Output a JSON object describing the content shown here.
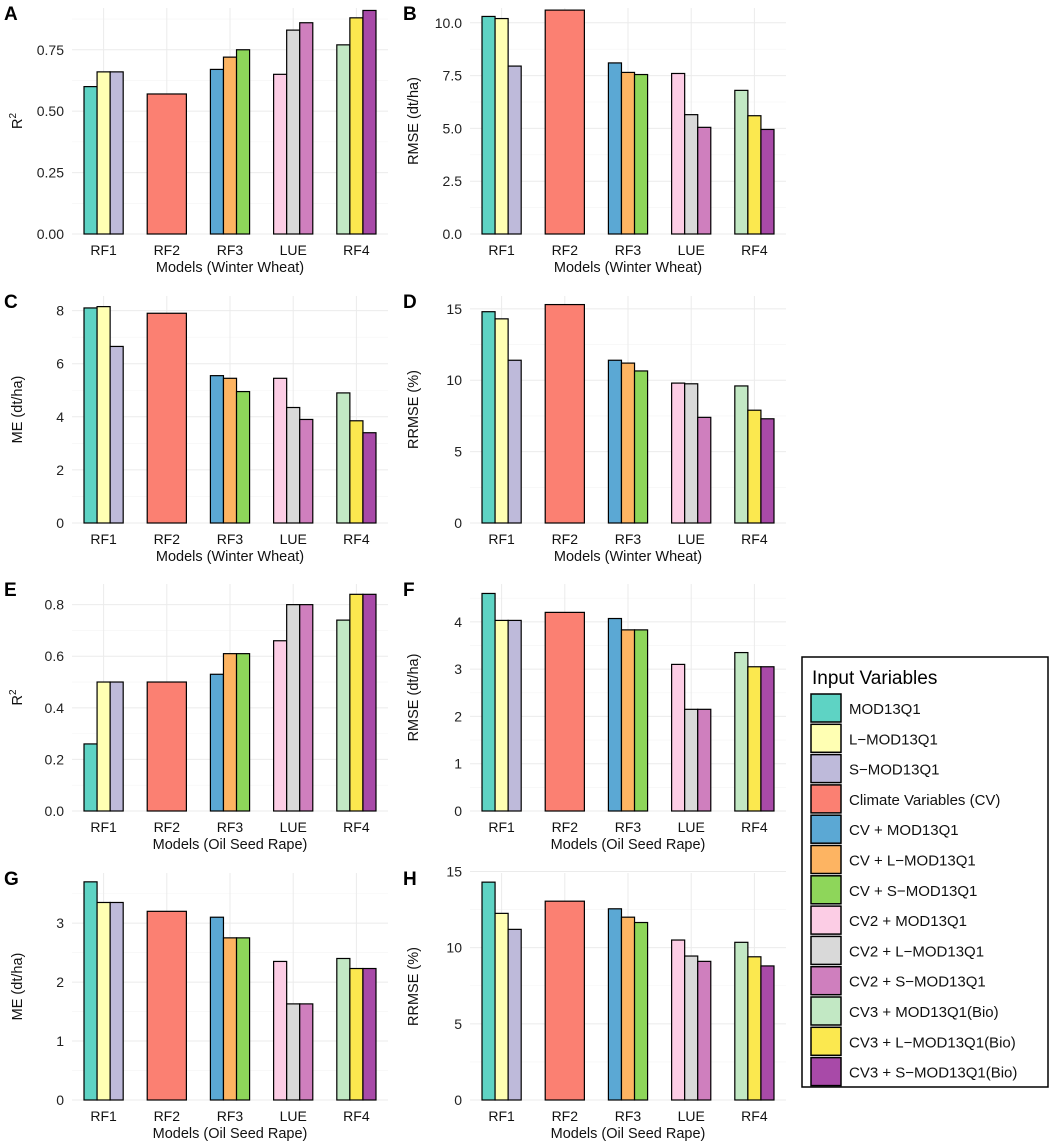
{
  "colors": {
    "MOD13Q1": "#5ED3C4",
    "L-MOD13Q1": "#FFFFB3",
    "S-MOD13Q1": "#BEBADA",
    "Climate Variables (CV)": "#FB8072",
    "CV + MOD13Q1": "#5BA8D4",
    "CV + L-MOD13Q1": "#FDB462",
    "CV + S-MOD13Q1": "#8ED65A",
    "CV2 + MOD13Q1": "#FCCDE5",
    "CV2 + L-MOD13Q1": "#D9D9D9",
    "CV2 + S-MOD13Q1": "#CF7FBE",
    "CV3 + MOD13Q1(Bio)": "#C2E8C4",
    "CV3 + L-MOD13Q1(Bio)": "#FBE84F",
    "CV3 + S-MOD13Q1(Bio)": "#A84AA8"
  },
  "legend": {
    "title": "Input Variables",
    "items": [
      {
        "key": "MOD13Q1",
        "label": "MOD13Q1"
      },
      {
        "key": "L-MOD13Q1",
        "label": "L−MOD13Q1"
      },
      {
        "key": "S-MOD13Q1",
        "label": "S−MOD13Q1"
      },
      {
        "key": "Climate Variables (CV)",
        "label": "Climate Variables (CV)"
      },
      {
        "key": "CV + MOD13Q1",
        "label": "CV +  MOD13Q1"
      },
      {
        "key": "CV + L-MOD13Q1",
        "label": "CV + L−MOD13Q1"
      },
      {
        "key": "CV + S-MOD13Q1",
        "label": "CV + S−MOD13Q1"
      },
      {
        "key": "CV2 + MOD13Q1",
        "label": "CV2 +  MOD13Q1"
      },
      {
        "key": "CV2 + L-MOD13Q1",
        "label": "CV2 + L−MOD13Q1"
      },
      {
        "key": "CV2 + S-MOD13Q1",
        "label": "CV2 + S−MOD13Q1"
      },
      {
        "key": "CV3 + MOD13Q1(Bio)",
        "label": "CV3 +  MOD13Q1(Bio)"
      },
      {
        "key": "CV3 + L-MOD13Q1(Bio)",
        "label": "CV3 + L−MOD13Q1(Bio)"
      },
      {
        "key": "CV3 + S-MOD13Q1(Bio)",
        "label": "CV3 +  S−MOD13Q1(Bio)"
      }
    ]
  },
  "chart_data": [
    {
      "panel": "A",
      "type": "bar",
      "xlabel": "Models (Winter Wheat)",
      "ylabel": "R2",
      "ylabel_superscript": "2",
      "ylim": [
        0,
        0.92
      ],
      "ticks": [
        "0.00",
        "0.25",
        "0.50",
        "0.75"
      ],
      "categories": [
        "RF1",
        "RF2",
        "RF3",
        "LUE",
        "RF4"
      ],
      "groups": [
        [
          {
            "series": "MOD13Q1",
            "value": 0.6
          },
          {
            "series": "L-MOD13Q1",
            "value": 0.66
          },
          {
            "series": "S-MOD13Q1",
            "value": 0.66
          }
        ],
        [
          {
            "series": "Climate Variables (CV)",
            "value": 0.57
          }
        ],
        [
          {
            "series": "CV + MOD13Q1",
            "value": 0.67
          },
          {
            "series": "CV + L-MOD13Q1",
            "value": 0.72
          },
          {
            "series": "CV + S-MOD13Q1",
            "value": 0.75
          }
        ],
        [
          {
            "series": "CV2 + MOD13Q1",
            "value": 0.65
          },
          {
            "series": "CV2 + L-MOD13Q1",
            "value": 0.83
          },
          {
            "series": "CV2 + S-MOD13Q1",
            "value": 0.86
          }
        ],
        [
          {
            "series": "CV3 + MOD13Q1(Bio)",
            "value": 0.77
          },
          {
            "series": "CV3 + L-MOD13Q1(Bio)",
            "value": 0.88
          },
          {
            "series": "CV3 + S-MOD13Q1(Bio)",
            "value": 0.91
          }
        ]
      ]
    },
    {
      "panel": "B",
      "type": "bar",
      "xlabel": "Models (Winter Wheat)",
      "ylabel": "RMSE (dt/ha)",
      "ylim": [
        0,
        10.7
      ],
      "ticks": [
        "0.0",
        "2.5",
        "5.0",
        "7.5",
        "10.0"
      ],
      "categories": [
        "RF1",
        "RF2",
        "RF3",
        "LUE",
        "RF4"
      ],
      "groups": [
        [
          {
            "series": "MOD13Q1",
            "value": 10.3
          },
          {
            "series": "L-MOD13Q1",
            "value": 10.2
          },
          {
            "series": "S-MOD13Q1",
            "value": 7.95
          }
        ],
        [
          {
            "series": "Climate Variables (CV)",
            "value": 10.6
          }
        ],
        [
          {
            "series": "CV + MOD13Q1",
            "value": 8.1
          },
          {
            "series": "CV + L-MOD13Q1",
            "value": 7.65
          },
          {
            "series": "CV + S-MOD13Q1",
            "value": 7.55
          }
        ],
        [
          {
            "series": "CV2 + MOD13Q1",
            "value": 7.6
          },
          {
            "series": "CV2 + L-MOD13Q1",
            "value": 5.65
          },
          {
            "series": "CV2 + S-MOD13Q1",
            "value": 5.05
          }
        ],
        [
          {
            "series": "CV3 + MOD13Q1(Bio)",
            "value": 6.8
          },
          {
            "series": "CV3 + L-MOD13Q1(Bio)",
            "value": 5.6
          },
          {
            "series": "CV3 + S-MOD13Q1(Bio)",
            "value": 4.95
          }
        ]
      ]
    },
    {
      "panel": "C",
      "type": "bar",
      "xlabel": "Models (Winter Wheat)",
      "ylabel": "ME (dt/ha)",
      "ylim": [
        0,
        8.55
      ],
      "ticks": [
        "0",
        "2",
        "4",
        "6",
        "8"
      ],
      "categories": [
        "RF1",
        "RF2",
        "RF3",
        "LUE",
        "RF4"
      ],
      "groups": [
        [
          {
            "series": "MOD13Q1",
            "value": 8.1
          },
          {
            "series": "L-MOD13Q1",
            "value": 8.15
          },
          {
            "series": "S-MOD13Q1",
            "value": 6.65
          }
        ],
        [
          {
            "series": "Climate Variables (CV)",
            "value": 7.9
          }
        ],
        [
          {
            "series": "CV + MOD13Q1",
            "value": 5.55
          },
          {
            "series": "CV + L-MOD13Q1",
            "value": 5.45
          },
          {
            "series": "CV + S-MOD13Q1",
            "value": 4.95
          }
        ],
        [
          {
            "series": "CV2 + MOD13Q1",
            "value": 5.45
          },
          {
            "series": "CV2 + L-MOD13Q1",
            "value": 4.35
          },
          {
            "series": "CV2 + S-MOD13Q1",
            "value": 3.9
          }
        ],
        [
          {
            "series": "CV3 + MOD13Q1(Bio)",
            "value": 4.9
          },
          {
            "series": "CV3 + L-MOD13Q1(Bio)",
            "value": 3.85
          },
          {
            "series": "CV3 + S-MOD13Q1(Bio)",
            "value": 3.4
          }
        ]
      ]
    },
    {
      "panel": "D",
      "type": "bar",
      "xlabel": "Models (Winter Wheat)",
      "ylabel": "RRMSE (%)",
      "ylim": [
        0,
        15.9
      ],
      "ticks": [
        "0",
        "5",
        "10",
        "15"
      ],
      "categories": [
        "RF1",
        "RF2",
        "RF3",
        "LUE",
        "RF4"
      ],
      "groups": [
        [
          {
            "series": "MOD13Q1",
            "value": 14.8
          },
          {
            "series": "L-MOD13Q1",
            "value": 14.3
          },
          {
            "series": "S-MOD13Q1",
            "value": 11.4
          }
        ],
        [
          {
            "series": "Climate Variables (CV)",
            "value": 15.3
          }
        ],
        [
          {
            "series": "CV + MOD13Q1",
            "value": 11.4
          },
          {
            "series": "CV + L-MOD13Q1",
            "value": 11.2
          },
          {
            "series": "CV + S-MOD13Q1",
            "value": 10.65
          }
        ],
        [
          {
            "series": "CV2 + MOD13Q1",
            "value": 9.8
          },
          {
            "series": "CV2 + L-MOD13Q1",
            "value": 9.75
          },
          {
            "series": "CV2 + S-MOD13Q1",
            "value": 7.4
          }
        ],
        [
          {
            "series": "CV3 + MOD13Q1(Bio)",
            "value": 9.6
          },
          {
            "series": "CV3 + L-MOD13Q1(Bio)",
            "value": 7.9
          },
          {
            "series": "CV3 + S-MOD13Q1(Bio)",
            "value": 7.3
          }
        ]
      ]
    },
    {
      "panel": "E",
      "type": "bar",
      "xlabel": "Models (Oil Seed Rape)",
      "ylabel": "R2",
      "ylabel_superscript": "2",
      "ylim": [
        0,
        0.88
      ],
      "ticks": [
        "0.0",
        "0.2",
        "0.4",
        "0.6",
        "0.8"
      ],
      "categories": [
        "RF1",
        "RF2",
        "RF3",
        "LUE",
        "RF4"
      ],
      "groups": [
        [
          {
            "series": "MOD13Q1",
            "value": 0.26
          },
          {
            "series": "L-MOD13Q1",
            "value": 0.5
          },
          {
            "series": "S-MOD13Q1",
            "value": 0.5
          }
        ],
        [
          {
            "series": "Climate Variables (CV)",
            "value": 0.5
          }
        ],
        [
          {
            "series": "CV + MOD13Q1",
            "value": 0.53
          },
          {
            "series": "CV + L-MOD13Q1",
            "value": 0.61
          },
          {
            "series": "CV + S-MOD13Q1",
            "value": 0.61
          }
        ],
        [
          {
            "series": "CV2 + MOD13Q1",
            "value": 0.66
          },
          {
            "series": "CV2 + L-MOD13Q1",
            "value": 0.8
          },
          {
            "series": "CV2 + S-MOD13Q1",
            "value": 0.8
          }
        ],
        [
          {
            "series": "CV3 + MOD13Q1(Bio)",
            "value": 0.74
          },
          {
            "series": "CV3 + L-MOD13Q1(Bio)",
            "value": 0.84
          },
          {
            "series": "CV3 + S-MOD13Q1(Bio)",
            "value": 0.84
          }
        ]
      ]
    },
    {
      "panel": "F",
      "type": "bar",
      "xlabel": "Models (Oil Seed Rape)",
      "ylabel": "RMSE (dt/ha)",
      "ylim": [
        0,
        4.8
      ],
      "ticks": [
        "0",
        "1",
        "2",
        "3",
        "4"
      ],
      "categories": [
        "RF1",
        "RF2",
        "RF3",
        "LUE",
        "RF4"
      ],
      "groups": [
        [
          {
            "series": "MOD13Q1",
            "value": 4.6
          },
          {
            "series": "L-MOD13Q1",
            "value": 4.03
          },
          {
            "series": "S-MOD13Q1",
            "value": 4.03
          }
        ],
        [
          {
            "series": "Climate Variables (CV)",
            "value": 4.2
          }
        ],
        [
          {
            "series": "CV + MOD13Q1",
            "value": 4.07
          },
          {
            "series": "CV + L-MOD13Q1",
            "value": 3.83
          },
          {
            "series": "CV + S-MOD13Q1",
            "value": 3.83
          }
        ],
        [
          {
            "series": "CV2 + MOD13Q1",
            "value": 3.1
          },
          {
            "series": "CV2 + L-MOD13Q1",
            "value": 2.15
          },
          {
            "series": "CV2 + S-MOD13Q1",
            "value": 2.15
          }
        ],
        [
          {
            "series": "CV3 + MOD13Q1(Bio)",
            "value": 3.35
          },
          {
            "series": "CV3 + L-MOD13Q1(Bio)",
            "value": 3.05
          },
          {
            "series": "CV3 + S-MOD13Q1(Bio)",
            "value": 3.05
          }
        ]
      ]
    },
    {
      "panel": "G",
      "type": "bar",
      "xlabel": "Models (Oil Seed Rape)",
      "ylabel": "ME (dt/ha)",
      "ylim": [
        0,
        3.85
      ],
      "ticks": [
        "0",
        "1",
        "2",
        "3"
      ],
      "categories": [
        "RF1",
        "RF2",
        "RF3",
        "LUE",
        "RF4"
      ],
      "groups": [
        [
          {
            "series": "MOD13Q1",
            "value": 3.7
          },
          {
            "series": "L-MOD13Q1",
            "value": 3.35
          },
          {
            "series": "S-MOD13Q1",
            "value": 3.35
          }
        ],
        [
          {
            "series": "Climate Variables (CV)",
            "value": 3.2
          }
        ],
        [
          {
            "series": "CV + MOD13Q1",
            "value": 3.1
          },
          {
            "series": "CV + L-MOD13Q1",
            "value": 2.75
          },
          {
            "series": "CV + S-MOD13Q1",
            "value": 2.75
          }
        ],
        [
          {
            "series": "CV2 + MOD13Q1",
            "value": 2.35
          },
          {
            "series": "CV2 + L-MOD13Q1",
            "value": 1.63
          },
          {
            "series": "CV2 + S-MOD13Q1",
            "value": 1.63
          }
        ],
        [
          {
            "series": "CV3 + MOD13Q1(Bio)",
            "value": 2.4
          },
          {
            "series": "CV3 + L-MOD13Q1(Bio)",
            "value": 2.23
          },
          {
            "series": "CV3 + S-MOD13Q1(Bio)",
            "value": 2.23
          }
        ]
      ]
    },
    {
      "panel": "H",
      "type": "bar",
      "xlabel": "Models (Oil Seed Rape)",
      "ylabel": "RRMSE (%)",
      "ylim": [
        0,
        14.9
      ],
      "ticks": [
        "0",
        "5",
        "10",
        "15"
      ],
      "categories": [
        "RF1",
        "RF2",
        "RF3",
        "LUE",
        "RF4"
      ],
      "groups": [
        [
          {
            "series": "MOD13Q1",
            "value": 14.3
          },
          {
            "series": "L-MOD13Q1",
            "value": 12.25
          },
          {
            "series": "S-MOD13Q1",
            "value": 11.2
          }
        ],
        [
          {
            "series": "Climate Variables (CV)",
            "value": 13.05
          }
        ],
        [
          {
            "series": "CV + MOD13Q1",
            "value": 12.55
          },
          {
            "series": "CV + L-MOD13Q1",
            "value": 12.0
          },
          {
            "series": "CV + S-MOD13Q1",
            "value": 11.65
          }
        ],
        [
          {
            "series": "CV2 + MOD13Q1",
            "value": 10.5
          },
          {
            "series": "CV2 + L-MOD13Q1",
            "value": 9.45
          },
          {
            "series": "CV2 + S-MOD13Q1",
            "value": 9.1
          }
        ],
        [
          {
            "series": "CV3 + MOD13Q1(Bio)",
            "value": 10.35
          },
          {
            "series": "CV3 + L-MOD13Q1(Bio)",
            "value": 9.4
          },
          {
            "series": "CV3 + S-MOD13Q1(Bio)",
            "value": 8.8
          }
        ]
      ]
    }
  ]
}
